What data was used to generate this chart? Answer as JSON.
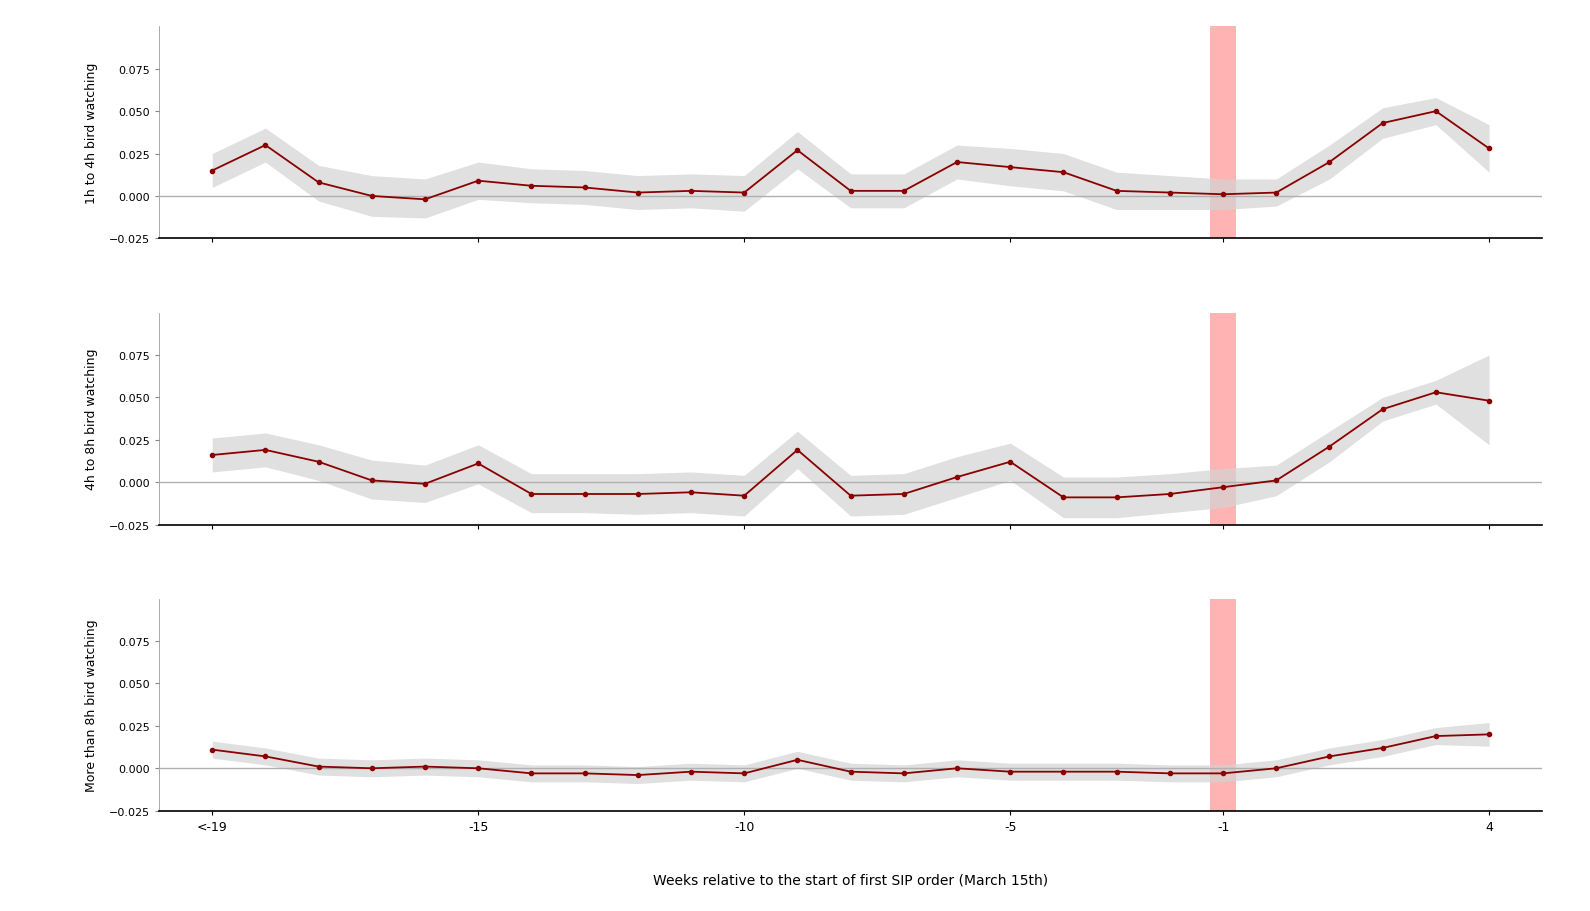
{
  "x_ticks": [
    "<-19",
    "-15",
    "-10",
    "-5",
    "-1",
    "4"
  ],
  "x_tick_positions": [
    -20,
    -15,
    -10,
    -5,
    -1,
    4
  ],
  "x_vline": -1,
  "background_color": "#ffffff",
  "line_color": "#8B0000",
  "fill_color": "#d3d3d3",
  "vline_color": "#ffb3b3",
  "zero_line_color": "#b0b0b0",
  "xlabel": "Weeks relative to the start of first SIP order (March 15th)",
  "panel_labels": [
    "1h to 4h bird watching",
    "4h to 8h bird watching",
    "More than 8h bird watching"
  ],
  "ylim": [
    -0.025,
    0.1
  ],
  "yticks": [
    -0.025,
    0.0,
    0.025,
    0.05,
    0.075
  ],
  "series1": {
    "x": [
      -20,
      -19,
      -18,
      -17,
      -16,
      -15,
      -14,
      -13,
      -12,
      -11,
      -10,
      -9,
      -8,
      -7,
      -6,
      -5,
      -4,
      -3,
      -2,
      -1,
      0,
      1,
      2,
      3,
      4
    ],
    "y": [
      0.015,
      0.03,
      0.008,
      0.0,
      -0.002,
      0.009,
      0.006,
      0.005,
      0.002,
      0.003,
      0.002,
      0.027,
      0.003,
      0.003,
      0.02,
      0.017,
      0.014,
      0.003,
      0.002,
      0.001,
      0.002,
      0.02,
      0.043,
      0.05,
      0.028
    ],
    "ci_upper": [
      0.025,
      0.04,
      0.018,
      0.012,
      0.01,
      0.02,
      0.016,
      0.015,
      0.012,
      0.013,
      0.012,
      0.038,
      0.013,
      0.013,
      0.03,
      0.028,
      0.025,
      0.014,
      0.012,
      0.01,
      0.01,
      0.03,
      0.052,
      0.058,
      0.042
    ],
    "ci_lower": [
      0.005,
      0.02,
      -0.003,
      -0.012,
      -0.013,
      -0.002,
      -0.004,
      -0.005,
      -0.008,
      -0.007,
      -0.009,
      0.016,
      -0.007,
      -0.007,
      0.01,
      0.006,
      0.003,
      -0.008,
      -0.008,
      -0.008,
      -0.006,
      0.01,
      0.034,
      0.042,
      0.014
    ]
  },
  "series2": {
    "x": [
      -20,
      -19,
      -18,
      -17,
      -16,
      -15,
      -14,
      -13,
      -12,
      -11,
      -10,
      -9,
      -8,
      -7,
      -6,
      -5,
      -4,
      -3,
      -2,
      -1,
      0,
      1,
      2,
      3,
      4
    ],
    "y": [
      0.016,
      0.019,
      0.012,
      0.001,
      -0.001,
      0.011,
      -0.007,
      -0.007,
      -0.007,
      -0.006,
      -0.008,
      0.019,
      -0.008,
      -0.007,
      0.003,
      0.012,
      -0.009,
      -0.009,
      -0.007,
      -0.003,
      0.001,
      0.021,
      0.043,
      0.053,
      0.048
    ],
    "ci_upper": [
      0.026,
      0.029,
      0.022,
      0.013,
      0.01,
      0.022,
      0.005,
      0.005,
      0.005,
      0.006,
      0.004,
      0.03,
      0.004,
      0.005,
      0.015,
      0.023,
      0.003,
      0.003,
      0.005,
      0.008,
      0.01,
      0.03,
      0.05,
      0.06,
      0.075
    ],
    "ci_lower": [
      0.006,
      0.009,
      0.001,
      -0.01,
      -0.012,
      -0.001,
      -0.018,
      -0.018,
      -0.019,
      -0.018,
      -0.02,
      0.008,
      -0.02,
      -0.019,
      -0.009,
      0.001,
      -0.021,
      -0.021,
      -0.018,
      -0.015,
      -0.008,
      0.012,
      0.036,
      0.046,
      0.022
    ]
  },
  "series3": {
    "x": [
      -20,
      -19,
      -18,
      -17,
      -16,
      -15,
      -14,
      -13,
      -12,
      -11,
      -10,
      -9,
      -8,
      -7,
      -6,
      -5,
      -4,
      -3,
      -2,
      -1,
      0,
      1,
      2,
      3,
      4
    ],
    "y": [
      0.011,
      0.007,
      0.001,
      0.0,
      0.001,
      0.0,
      -0.003,
      -0.003,
      -0.004,
      -0.002,
      -0.003,
      0.005,
      -0.002,
      -0.003,
      0.0,
      -0.002,
      -0.002,
      -0.002,
      -0.003,
      -0.003,
      0.0,
      0.007,
      0.012,
      0.019,
      0.02
    ],
    "ci_upper": [
      0.016,
      0.012,
      0.006,
      0.005,
      0.006,
      0.005,
      0.002,
      0.002,
      0.001,
      0.003,
      0.002,
      0.01,
      0.003,
      0.002,
      0.005,
      0.003,
      0.003,
      0.003,
      0.002,
      0.002,
      0.005,
      0.012,
      0.017,
      0.024,
      0.027
    ],
    "ci_lower": [
      0.006,
      0.002,
      -0.004,
      -0.005,
      -0.004,
      -0.005,
      -0.008,
      -0.008,
      -0.009,
      -0.007,
      -0.008,
      0.0,
      -0.007,
      -0.008,
      -0.005,
      -0.007,
      -0.007,
      -0.007,
      -0.008,
      -0.008,
      -0.005,
      0.002,
      0.007,
      0.014,
      0.013
    ]
  }
}
